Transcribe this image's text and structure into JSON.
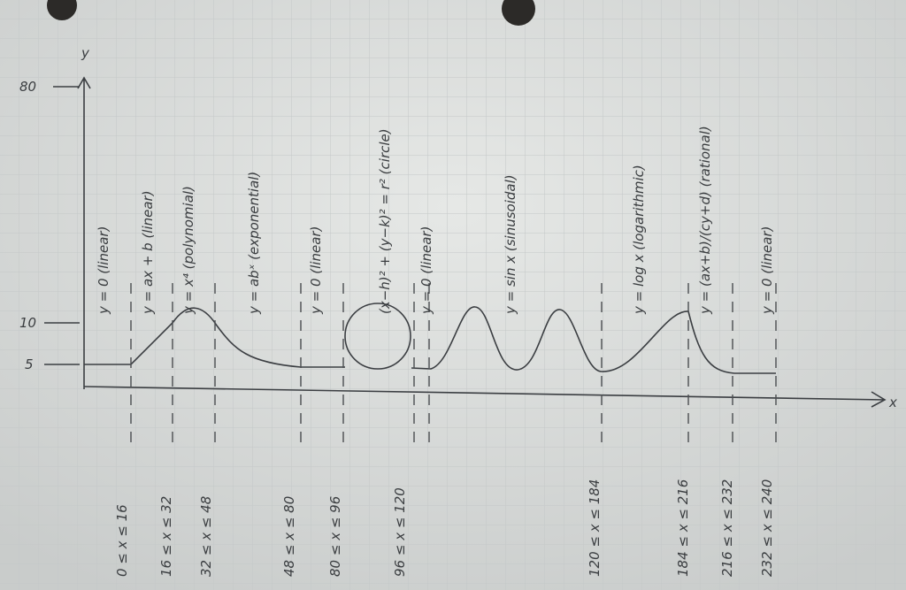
{
  "axes": {
    "y_label": "y",
    "x_label": "x",
    "y_ticks": [
      "80",
      "10",
      "5"
    ]
  },
  "equations": [
    "y = 0 (linear)",
    "y = ax + b (linear)",
    "y = x⁴ (polynomial)",
    "y = abˣ (exponential)",
    "y = 0 (linear)",
    "(x−h)² + (y−k)² = r² (circle)",
    "y = 0 (linear)",
    "y = sin x (sinusoidal)",
    "y = log x (logarithmic)",
    "y = (ax+b)/(cy+d) (rational)",
    "y = 0 (linear)"
  ],
  "ranges": [
    "0 ≤ x ≤ 16",
    "16 ≤ x ≤ 32",
    "32 ≤ x ≤ 48",
    "48 ≤ x ≤ 80",
    "80 ≤ x ≤ 96",
    "96 ≤ x ≤ 120",
    "120 ≤ x ≤ 184",
    "184 ≤ x ≤ 216",
    "216 ≤ x ≤ 232",
    "232 ≤ x ≤ 240"
  ]
}
